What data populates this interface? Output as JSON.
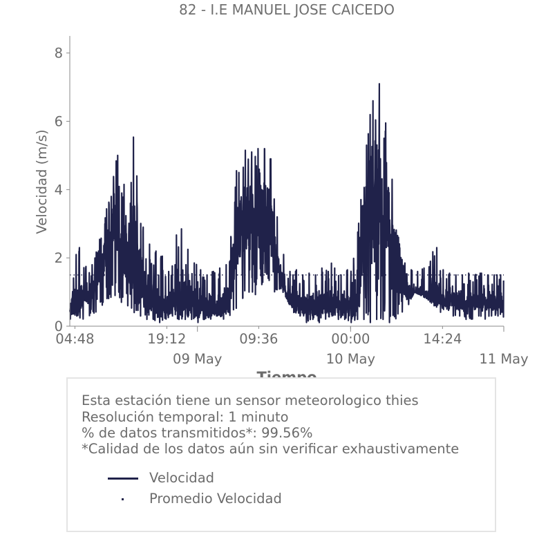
{
  "chart_data": {
    "type": "line",
    "title": "82 - I.E MANUEL JOSE CAICEDO",
    "xlabel": "Tiempo",
    "ylabel": "Velocidad (m/s)",
    "ylim": [
      0,
      8.5
    ],
    "xlim": [
      "2023-05-08T04:00",
      "2023-05-11T00:00"
    ],
    "y_ticks": [
      "0",
      "2",
      "4",
      "6",
      "8"
    ],
    "x_ticks": [
      {
        "at": "2023-05-08T04:48",
        "label": "04:48"
      },
      {
        "at": "2023-05-08T19:12",
        "label": "19:12"
      },
      {
        "at": "2023-05-09T09:36",
        "label": "09:36"
      },
      {
        "at": "2023-05-10T00:00",
        "label": "00:00"
      },
      {
        "at": "2023-05-10T14:24",
        "label": "14:24"
      }
    ],
    "x_major_ticks": [
      {
        "at": "2023-05-09T00:00",
        "label": "09 May"
      },
      {
        "at": "2023-05-10T00:00",
        "label": "10 May"
      },
      {
        "at": "2023-05-11T00:00",
        "label": "11 May"
      }
    ],
    "grid": false,
    "series": [
      {
        "name": "Velocidad",
        "style": "solid",
        "color": "#20224a",
        "x": [
          "2023-05-08T04:00",
          "2023-05-08T05:00",
          "2023-05-08T06:00",
          "2023-05-08T07:00",
          "2023-05-08T08:00",
          "2023-05-08T09:00",
          "2023-05-08T10:00",
          "2023-05-08T11:00",
          "2023-05-08T12:00",
          "2023-05-08T13:00",
          "2023-05-08T14:00",
          "2023-05-08T15:00",
          "2023-05-08T16:00",
          "2023-05-08T17:00",
          "2023-05-08T18:00",
          "2023-05-08T19:00",
          "2023-05-08T20:00",
          "2023-05-08T21:00",
          "2023-05-08T22:00",
          "2023-05-08T23:00",
          "2023-05-09T00:00",
          "2023-05-09T01:00",
          "2023-05-09T02:00",
          "2023-05-09T03:00",
          "2023-05-09T04:00",
          "2023-05-09T05:00",
          "2023-05-09T06:00",
          "2023-05-09T07:00",
          "2023-05-09T08:00",
          "2023-05-09T09:00",
          "2023-05-09T10:00",
          "2023-05-09T11:00",
          "2023-05-09T12:00",
          "2023-05-09T13:00",
          "2023-05-09T14:00",
          "2023-05-09T15:00",
          "2023-05-09T16:00",
          "2023-05-09T17:00",
          "2023-05-09T18:00",
          "2023-05-09T19:00",
          "2023-05-09T20:00",
          "2023-05-09T21:00",
          "2023-05-09T22:00",
          "2023-05-09T23:00",
          "2023-05-10T00:00",
          "2023-05-10T01:00",
          "2023-05-10T02:00",
          "2023-05-10T03:00",
          "2023-05-10T04:00",
          "2023-05-10T05:00",
          "2023-05-10T06:00",
          "2023-05-10T07:00",
          "2023-05-10T08:00",
          "2023-05-10T09:00",
          "2023-05-10T10:00",
          "2023-05-10T11:00",
          "2023-05-10T12:00",
          "2023-05-10T13:00",
          "2023-05-10T14:00",
          "2023-05-10T15:00",
          "2023-05-10T16:00",
          "2023-05-10T17:00",
          "2023-05-10T18:00",
          "2023-05-10T19:00",
          "2023-05-10T20:00",
          "2023-05-10T21:00",
          "2023-05-10T22:00",
          "2023-05-10T23:00",
          "2023-05-11T00:00"
        ],
        "min": [
          0.2,
          0.3,
          0.2,
          0.3,
          0.4,
          0.6,
          0.8,
          0.9,
          0.7,
          0.6,
          0.4,
          0.3,
          0.2,
          0.2,
          0.1,
          0.2,
          0.3,
          0.2,
          0.2,
          0.2,
          0.1,
          0.2,
          0.2,
          0.3,
          0.2,
          0.3,
          0.5,
          0.8,
          1.0,
          0.9,
          1.2,
          1.4,
          1.0,
          1.1,
          0.8,
          0.4,
          0.3,
          0.1,
          0.2,
          0.1,
          0.2,
          0.3,
          0.2,
          0.2,
          0.1,
          0.2,
          0.2,
          0.1,
          0.2,
          0.2,
          0.1,
          0.2,
          0.4,
          0.6,
          1.0,
          0.9,
          0.8,
          0.6,
          0.4,
          0.5,
          0.3,
          0.3,
          0.2,
          0.2,
          0.3,
          0.2,
          0.3,
          0.3,
          0.2
        ],
        "max": [
          0.8,
          2.9,
          1.7,
          1.8,
          2.2,
          3.0,
          3.8,
          5.3,
          4.7,
          3.6,
          5.6,
          3.2,
          2.6,
          2.2,
          2.5,
          1.6,
          1.8,
          3.1,
          2.6,
          1.9,
          1.8,
          1.5,
          1.6,
          1.7,
          1.8,
          2.3,
          4.5,
          5.2,
          5.1,
          5.2,
          5.2,
          6.0,
          3.8,
          2.6,
          1.6,
          1.8,
          1.5,
          1.6,
          1.5,
          1.8,
          1.6,
          1.9,
          1.5,
          1.7,
          1.6,
          2.6,
          5.3,
          6.6,
          7.7,
          6.5,
          5.4,
          3.2,
          2.0,
          1.7,
          1.6,
          1.7,
          1.9,
          2.9,
          1.7,
          1.6,
          1.5,
          1.5,
          1.6,
          1.5,
          1.6,
          1.5,
          1.5,
          1.5,
          1.5
        ],
        "typical": [
          0.5,
          0.7,
          0.9,
          1.0,
          1.3,
          1.8,
          2.4,
          3.0,
          2.6,
          2.0,
          2.2,
          1.6,
          1.1,
          0.9,
          0.7,
          0.6,
          0.7,
          0.8,
          0.8,
          0.7,
          0.6,
          0.6,
          0.7,
          0.6,
          0.6,
          0.8,
          2.5,
          3.0,
          3.2,
          3.0,
          3.1,
          3.3,
          2.4,
          1.6,
          0.9,
          0.7,
          0.6,
          0.6,
          0.6,
          0.7,
          0.7,
          0.7,
          0.6,
          0.7,
          0.6,
          0.9,
          2.8,
          3.6,
          4.0,
          3.4,
          2.8,
          1.8,
          1.2,
          1.0,
          0.9,
          1.0,
          0.9,
          1.1,
          0.8,
          0.8,
          0.7,
          0.8,
          0.7,
          0.7,
          0.8,
          0.7,
          0.8,
          0.7,
          0.7
        ]
      },
      {
        "name": "Promedio Velocidad",
        "style": "dotted",
        "color": "#20224a",
        "value": 1.5
      }
    ]
  },
  "info": {
    "line1": "Esta estación tiene un sensor meteorologico thies",
    "line2": "Resolución temporal: 1 minuto",
    "line3": "% de datos transmitidos*: 99.56%",
    "line4": "*Calidad de los datos aún sin verificar exhaustivamente"
  },
  "legend": {
    "item1": "Velocidad",
    "item2": "Promedio Velocidad"
  },
  "colors": {
    "series": "#20224a",
    "text": "#6b6b6b",
    "axis": "#8a8a8a",
    "box_border": "#e4e4e4"
  }
}
